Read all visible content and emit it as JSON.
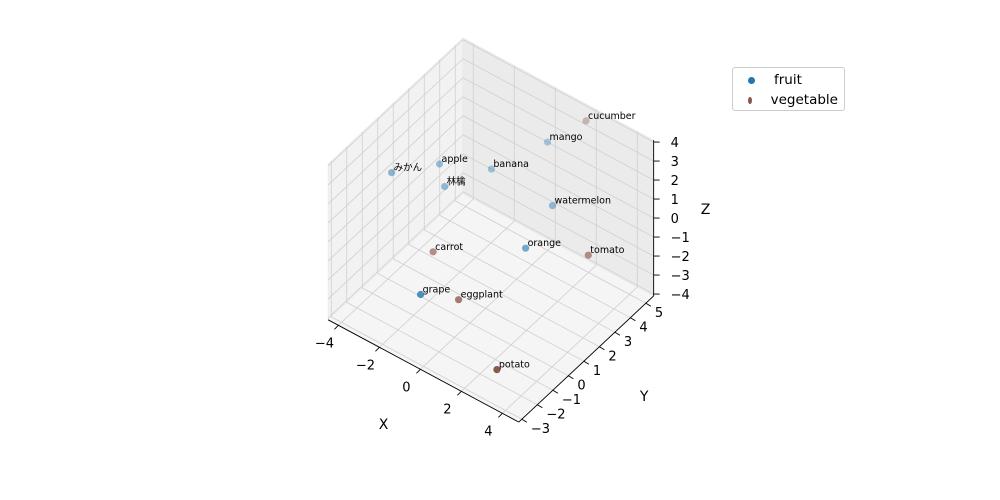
{
  "chart_data": {
    "type": "scatter",
    "projection": "3d",
    "xlabel": "X",
    "ylabel": "Y",
    "zlabel": "Z",
    "xlim": [
      -4.5,
      4.8
    ],
    "ylim": [
      -3.2,
      5.5
    ],
    "zlim": [
      -4.1,
      4.1
    ],
    "x_ticks": [
      -4,
      -2,
      0,
      2,
      4
    ],
    "y_ticks": [
      -3,
      -2,
      -1,
      0,
      1,
      2,
      3,
      4,
      5
    ],
    "z_ticks": [
      -4,
      -3,
      -2,
      -1,
      0,
      1,
      2,
      3,
      4
    ],
    "grid": true,
    "legend_position": "upper-right, outside axes",
    "series": [
      {
        "name": "fruit",
        "color": "#1f77b4",
        "points": [
          {
            "label": "apple",
            "x": -3.0,
            "y": 2.0,
            "z": 1.0
          },
          {
            "label": "林檎",
            "x": -2.6,
            "y": 1.8,
            "z": 0.2
          },
          {
            "label": "みかん",
            "x": -4.2,
            "y": 0.5,
            "z": 1.0
          },
          {
            "label": "banana",
            "x": -1.6,
            "y": 3.5,
            "z": 0.4
          },
          {
            "label": "orange",
            "x": 1.2,
            "y": 2.0,
            "z": -1.0
          },
          {
            "label": "mango",
            "x": 0.0,
            "y": 5.0,
            "z": 1.6
          },
          {
            "label": "watermelon",
            "x": 1.0,
            "y": 4.0,
            "z": -0.4
          },
          {
            "label": "grape",
            "x": -0.9,
            "y": -2.0,
            "z": -1.6
          }
        ]
      },
      {
        "name": "vegetable",
        "color": "#8c564b",
        "points": [
          {
            "label": "carrot",
            "x": -1.8,
            "y": 0.0,
            "z": -1.4
          },
          {
            "label": "eggplant",
            "x": 0.2,
            "y": -1.0,
            "z": -2.0
          },
          {
            "label": "cucumber",
            "x": 1.5,
            "y": 5.5,
            "z": 3.2
          },
          {
            "label": "tomato",
            "x": 3.5,
            "y": 3.0,
            "z": -0.8
          },
          {
            "label": "potato",
            "x": 3.2,
            "y": -2.5,
            "z": -2.8
          }
        ]
      }
    ]
  }
}
